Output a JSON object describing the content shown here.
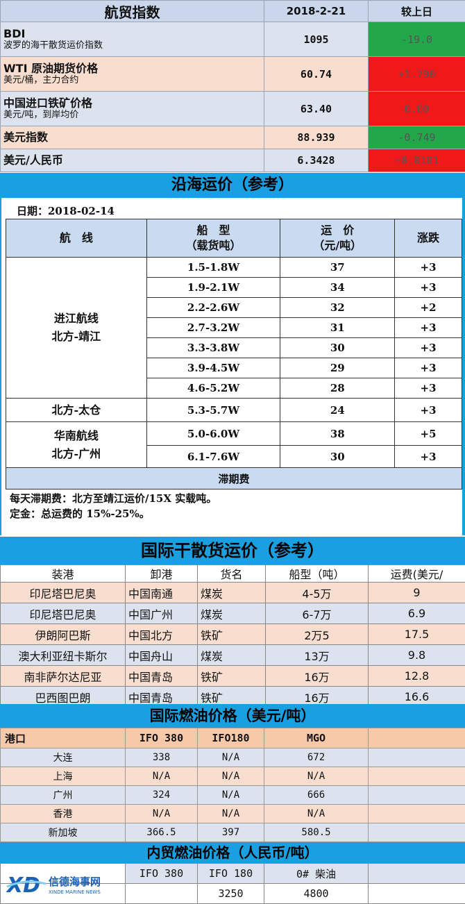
{
  "index": {
    "title": "航贸指数",
    "date": "2018-2-21",
    "compare": "较上日",
    "rows": [
      {
        "name": "BDI",
        "sub": "波罗的海干散货运价指数",
        "value": "1095",
        "change": "-19.0",
        "color": "#22a84a"
      },
      {
        "name": "WTI 原油期货价格",
        "sub": "美元/桶，主力合约",
        "value": "60.74",
        "change": "+1.790",
        "color": "#f01818"
      },
      {
        "name": "中国进口铁矿价格",
        "sub": "美元/吨，到岸均价",
        "value": "63.40",
        "change": "0.00",
        "color": "#f01818"
      },
      {
        "name": "美元指数",
        "sub": "",
        "value": "88.939",
        "change": "-0.749",
        "color": "#22a84a"
      },
      {
        "name": "美元/人民币",
        "sub": "",
        "value": "6.3428",
        "change": "+0.0181",
        "color": "#f01818"
      }
    ]
  },
  "coastal": {
    "title": "沿海运价（参考）",
    "date": "日期：2018-02-14",
    "headers": {
      "route": "航　线",
      "ship1": "船　型",
      "ship2": "（载货吨）",
      "price1": "运　价",
      "price2": "（元/吨）",
      "change": "涨跌"
    },
    "route_groups": [
      {
        "line1": "进江航线",
        "line2": "北方-靖江"
      },
      {
        "line1": "北方-太仓",
        "line2": ""
      },
      {
        "line1": "华南航线",
        "line2": "北方-广州"
      }
    ],
    "rows": [
      {
        "ship": "1.5-1.8W",
        "price": "37",
        "change": "+3"
      },
      {
        "ship": "1.9-2.1W",
        "price": "34",
        "change": "+3"
      },
      {
        "ship": "2.2-2.6W",
        "price": "32",
        "change": "+2"
      },
      {
        "ship": "2.7-3.2W",
        "price": "31",
        "change": "+3"
      },
      {
        "ship": "3.3-3.8W",
        "price": "30",
        "change": "+3"
      },
      {
        "ship": "3.9-4.5W",
        "price": "29",
        "change": "+3"
      },
      {
        "ship": "4.6-5.2W",
        "price": "28",
        "change": "+3"
      },
      {
        "ship": "5.3-5.7W",
        "price": "24",
        "change": "+3"
      },
      {
        "ship": "5.0-6.0W",
        "price": "38",
        "change": "+5"
      },
      {
        "ship": "6.1-7.6W",
        "price": "30",
        "change": "+3"
      }
    ],
    "demurrage_title": "滞期费",
    "note1": "每天滞期费：北方至靖江运价/15X 实载吨。",
    "note2": "定金：总运费的 15%-25%。"
  },
  "intl": {
    "title": "国际干散货运价（参考）",
    "headers": [
      "装港",
      "卸港",
      "货名",
      "船型（吨）",
      "运费(美元/"
    ],
    "rows": [
      [
        "印尼塔巴尼奥",
        "中国南通",
        "煤炭",
        "4-5万",
        "9"
      ],
      [
        "印尼塔巴尼奥",
        "中国广州",
        "煤炭",
        "6-7万",
        "6.9"
      ],
      [
        "伊朗阿巴斯",
        "中国北方",
        "铁矿",
        "2万5",
        "17.5"
      ],
      [
        "澳大利亚纽卡斯尔",
        "中国舟山",
        "煤炭",
        "13万",
        "9.8"
      ],
      [
        "南非萨尔达尼亚",
        "中国青岛",
        "铁矿",
        "16万",
        "12.8"
      ],
      [
        "巴西图巴朗",
        "中国青岛",
        "铁矿",
        "16万",
        "16.6"
      ]
    ]
  },
  "fuel": {
    "title": "国际燃油价格（美元/吨）",
    "headers": [
      "港口",
      "IFO 380",
      "IFO180",
      "MGO",
      ""
    ],
    "rows": [
      [
        "大连",
        "338",
        "N/A",
        "672",
        ""
      ],
      [
        "上海",
        "N/A",
        "N/A",
        "N/A",
        ""
      ],
      [
        "广州",
        "324",
        "N/A",
        "666",
        ""
      ],
      [
        "香港",
        "N/A",
        "N/A",
        "N/A",
        ""
      ],
      [
        "新加坡",
        "366.5",
        "397",
        "580.5",
        ""
      ]
    ]
  },
  "domestic": {
    "title": "内贸燃油价格（人民币/吨）",
    "headers": [
      "IFO 380",
      "IFO 180",
      "0# 柴油"
    ],
    "values": [
      "",
      "3250",
      "4800"
    ],
    "logo_text": "信德海事网",
    "logo_sub": "XINDE MARINE NEWS"
  },
  "colors": {
    "blue_bar": "#1aa0e0",
    "green": "#22a84a",
    "red": "#f01818"
  }
}
